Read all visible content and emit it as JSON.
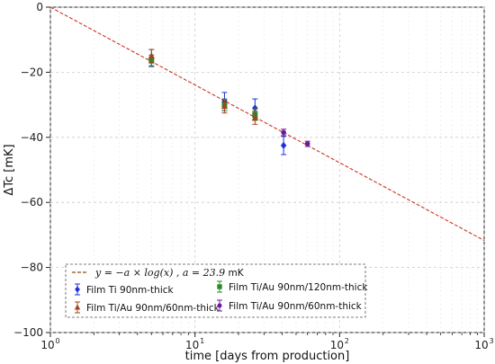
{
  "chart_data": {
    "type": "scatter",
    "xlabel": "time [days from production]",
    "ylabel": "ΔTc [mK]",
    "xscale": "log",
    "xlim": [
      1,
      1000
    ],
    "ylim": [
      -100,
      0
    ],
    "x_ticks": [
      1,
      10,
      100,
      1000
    ],
    "x_tick_labels": [
      "10",
      "10",
      "10",
      "10"
    ],
    "x_tick_exponents": [
      "0",
      "1",
      "2",
      "3"
    ],
    "y_ticks": [
      0,
      -20,
      -40,
      -60,
      -80,
      -100
    ],
    "y_tick_labels": [
      "0",
      "−20",
      "−40",
      "−60",
      "−80",
      "−100"
    ],
    "grid": true,
    "legend_position": "bottom-left",
    "fit": {
      "label_formula": "y = −a × log(x) , a = 23.9",
      "label_unit": " mK",
      "a": 23.9,
      "color": "#cc3322",
      "style": "dashed"
    },
    "series": [
      {
        "name": "Film Ti 90nm-thick",
        "marker": "diamond",
        "color": "#1f2fe0",
        "points": [
          {
            "x": 5,
            "y": -15.5,
            "err": 2.5
          },
          {
            "x": 16,
            "y": -29.0,
            "err": 2.8
          },
          {
            "x": 26,
            "y": -31.0,
            "err": 2.8
          },
          {
            "x": 41,
            "y": -42.5,
            "err": 2.8
          }
        ]
      },
      {
        "name": "Film Ti/Au 90nm/120nm-thick",
        "marker": "square",
        "color": "#2a8a2a",
        "points": [
          {
            "x": 5,
            "y": -16.5,
            "err": 1.8
          },
          {
            "x": 16,
            "y": -30.0,
            "err": 1.8
          },
          {
            "x": 26,
            "y": -33.0,
            "err": 1.8
          }
        ]
      },
      {
        "name": "Film Ti/Au 90nm/60nm-thick",
        "marker": "triangle",
        "color": "#a0461e",
        "points": [
          {
            "x": 5,
            "y": -15.0,
            "err": 2.0
          },
          {
            "x": 16,
            "y": -30.5,
            "err": 2.0
          },
          {
            "x": 26,
            "y": -34.0,
            "err": 2.0
          }
        ]
      },
      {
        "name": "Film Ti/Au 90nm/60nm-thick",
        "marker": "circle",
        "color": "#6a1a9a",
        "points": [
          {
            "x": 41,
            "y": -38.5,
            "err": 1.0
          },
          {
            "x": 60,
            "y": -42.0,
            "err": 0.8
          }
        ]
      }
    ]
  }
}
